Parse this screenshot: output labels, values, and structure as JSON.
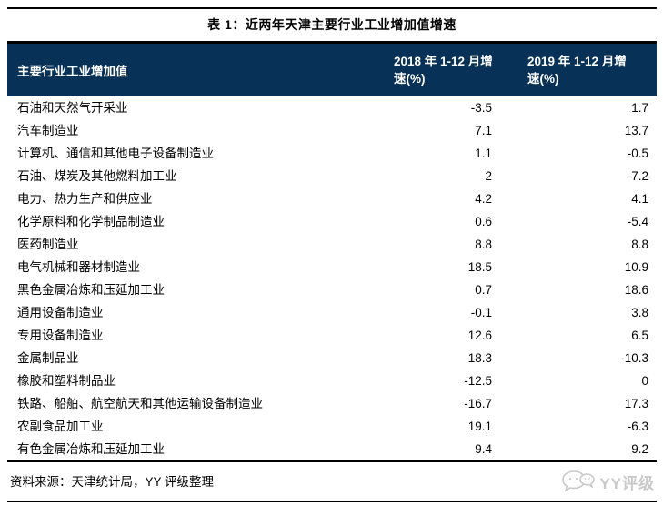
{
  "title": "表 1：近两年天津主要行业工业增加值增速",
  "table": {
    "columns": [
      "主要行业工业增加值",
      "2018 年 1-12 月增速(%)",
      "2019 年 1-12 月增速(%)"
    ],
    "rows": [
      {
        "industry": "石油和天然气开采业",
        "y2018": "-3.5",
        "y2019": "1.7"
      },
      {
        "industry": "汽车制造业",
        "y2018": "7.1",
        "y2019": "13.7"
      },
      {
        "industry": "计算机、通信和其他电子设备制造业",
        "y2018": "1.1",
        "y2019": "-0.5"
      },
      {
        "industry": "石油、煤炭及其他燃料加工业",
        "y2018": "2",
        "y2019": "-7.2"
      },
      {
        "industry": "电力、热力生产和供应业",
        "y2018": "4.2",
        "y2019": "4.1"
      },
      {
        "industry": "化学原料和化学制品制造业",
        "y2018": "0.6",
        "y2019": "-5.4"
      },
      {
        "industry": "医药制造业",
        "y2018": "8.8",
        "y2019": "8.8"
      },
      {
        "industry": "电气机械和器材制造业",
        "y2018": "18.5",
        "y2019": "10.9"
      },
      {
        "industry": "黑色金属冶炼和压延加工业",
        "y2018": "0.7",
        "y2019": "18.6"
      },
      {
        "industry": "通用设备制造业",
        "y2018": "-0.1",
        "y2019": "3.8"
      },
      {
        "industry": "专用设备制造业",
        "y2018": "12.6",
        "y2019": "6.5"
      },
      {
        "industry": "金属制品业",
        "y2018": "18.3",
        "y2019": "-10.3"
      },
      {
        "industry": "橡胶和塑料制品业",
        "y2018": "-12.5",
        "y2019": "0"
      },
      {
        "industry": "铁路、船舶、航空航天和其他运输设备制造业",
        "y2018": "-16.7",
        "y2019": "17.3"
      },
      {
        "industry": "农副食品加工业",
        "y2018": "19.1",
        "y2019": "-6.3"
      },
      {
        "industry": "有色金属冶炼和压延加工业",
        "y2018": "9.4",
        "y2019": "9.2"
      }
    ]
  },
  "footer": {
    "source": "资料来源：天津统计局，YY 评级整理",
    "brand_text": "YY评级",
    "brand_icon": "chat-bubbles-icon"
  },
  "colors": {
    "header_bg": "#073156",
    "header_text": "#ffffff",
    "body_text": "#000000",
    "rule": "#000000",
    "brand_grey": "#c9c9c9"
  }
}
